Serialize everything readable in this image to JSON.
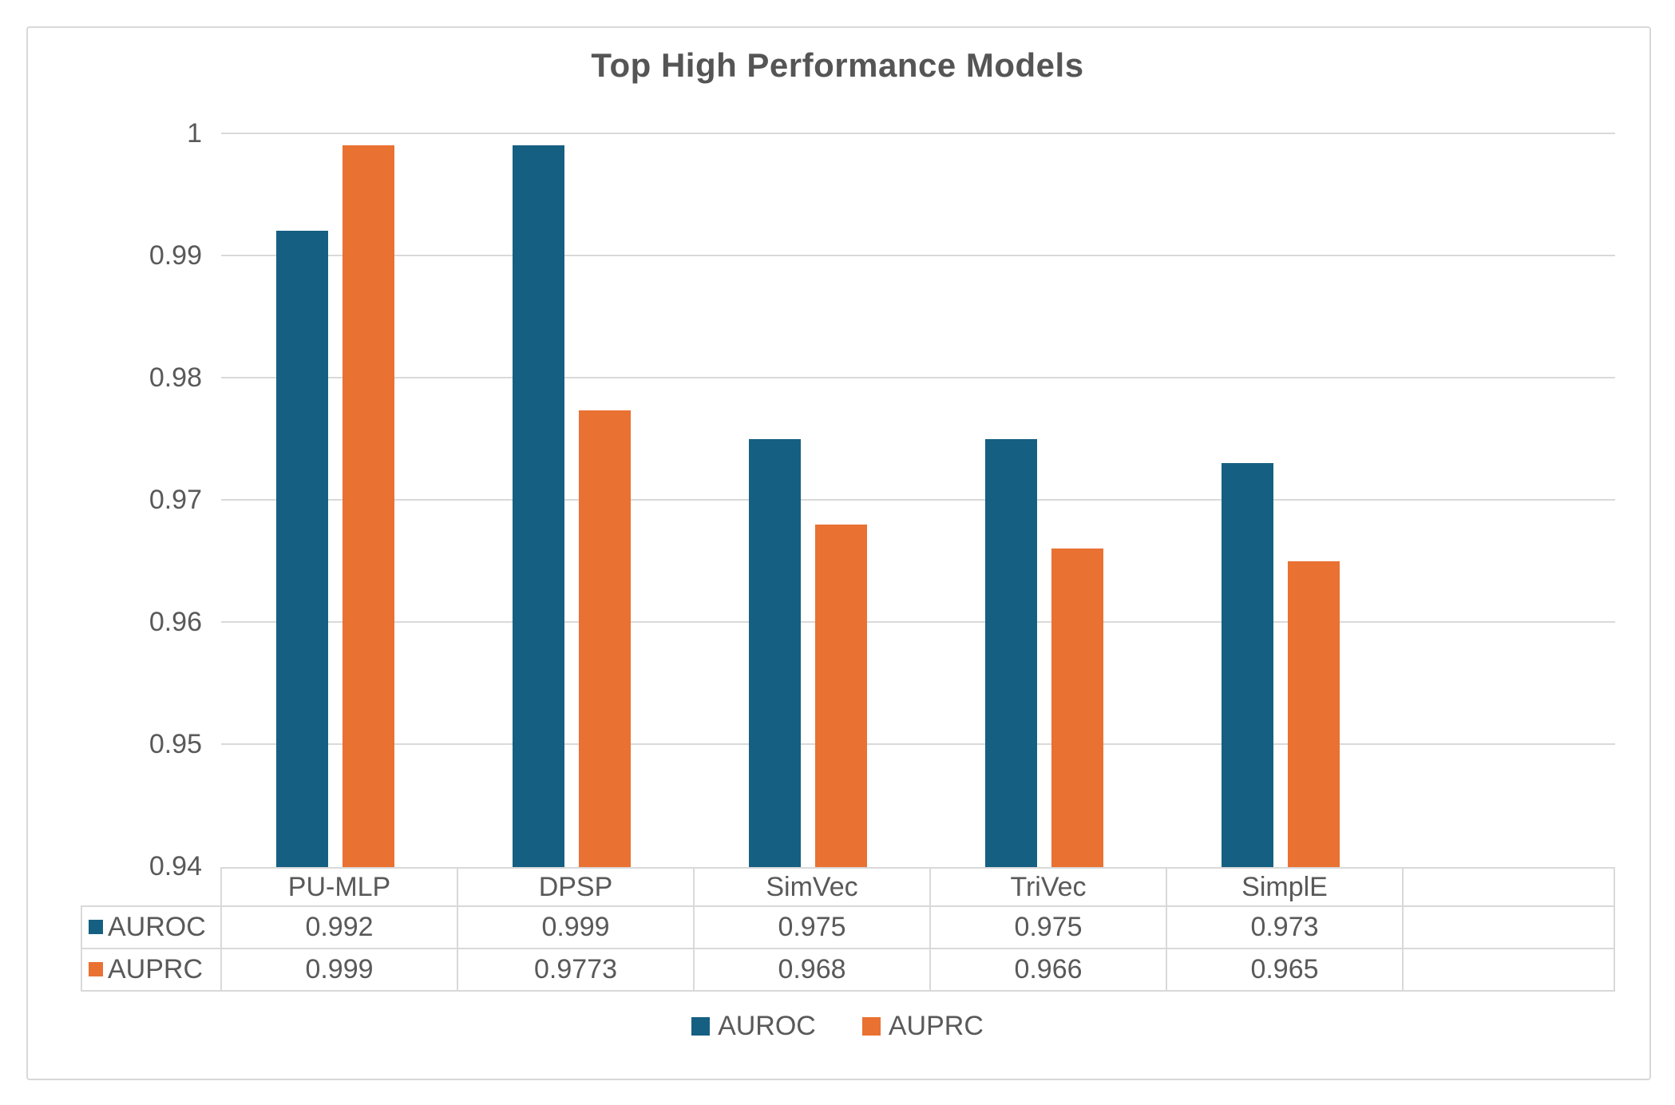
{
  "title": "Top High Performance Models",
  "colors": {
    "auroc": "#156082",
    "auprc": "#E97132",
    "grid": "#d9d9d9",
    "text": "#595959"
  },
  "chart_data": {
    "type": "bar",
    "title": "Top High Performance Models",
    "categories": [
      "PU-MLP",
      "DPSP",
      "SimVec",
      "TriVec",
      "SimplE"
    ],
    "series": [
      {
        "name": "AUROC",
        "color": "#156082",
        "values": [
          0.992,
          0.999,
          0.975,
          0.975,
          0.973
        ]
      },
      {
        "name": "AUPRC",
        "color": "#E97132",
        "values": [
          0.999,
          0.9773,
          0.968,
          0.966,
          0.965
        ]
      }
    ],
    "ylim": [
      0.94,
      1.0
    ],
    "ytick_labels": [
      "1",
      "0.99",
      "0.98",
      "0.97",
      "0.96",
      "0.95",
      "0.94"
    ],
    "ytick_values": [
      1.0,
      0.99,
      0.98,
      0.97,
      0.96,
      0.95,
      0.94
    ],
    "grid": true,
    "legend_position": "bottom",
    "xlabel": "",
    "ylabel": ""
  },
  "table": {
    "columns": [
      "PU-MLP",
      "DPSP",
      "SimVec",
      "TriVec",
      "SimplE"
    ],
    "rows": [
      {
        "label": "AUROC",
        "values": [
          "0.992",
          "0.999",
          "0.975",
          "0.975",
          "0.973"
        ]
      },
      {
        "label": "AUPRC",
        "values": [
          "0.999",
          "0.9773",
          "0.968",
          "0.966",
          "0.965"
        ]
      }
    ]
  },
  "legend": {
    "items": [
      {
        "label": "AUROC",
        "color": "#156082"
      },
      {
        "label": "AUPRC",
        "color": "#E97132"
      }
    ]
  }
}
